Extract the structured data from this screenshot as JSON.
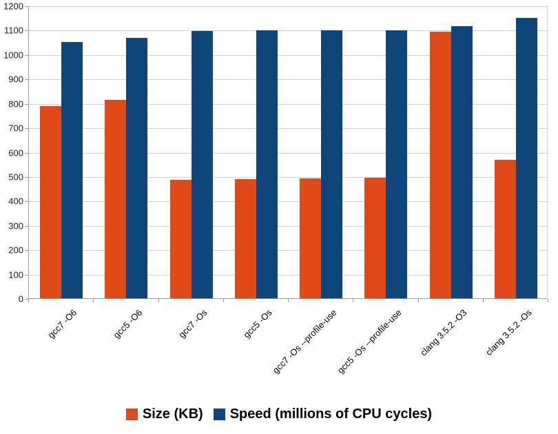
{
  "chart_data": {
    "type": "bar",
    "title": "",
    "xlabel": "",
    "ylabel": "",
    "ylim": [
      0,
      1200
    ],
    "ytick_step": 100,
    "ytick_labels": [
      "0",
      "100",
      "200",
      "300",
      "400",
      "500",
      "600",
      "700",
      "800",
      "900",
      "1000",
      "1100",
      "1200"
    ],
    "grid": true,
    "legend_position": "bottom",
    "categories": [
      "gcc7 -O6",
      "gcc5 -O6",
      "gcc7 -Os",
      "gcc5 -Os",
      "gcc7 -Os --profile-use",
      "gcc5 -Os --profile-use",
      "clang 3.5.2 -O3",
      "clang 3.5.2 -Os"
    ],
    "series": [
      {
        "name": "Size (KB)",
        "color": "#E04A18",
        "values": [
          790,
          816,
          488,
          492,
          494,
          497,
          1095,
          570
        ]
      },
      {
        "name": "Speed (millions of CPU cycles)",
        "color": "#0E467C",
        "values": [
          1053,
          1070,
          1097,
          1100,
          1100,
          1102,
          1117,
          1152
        ]
      }
    ]
  },
  "colors": {
    "background": "#ffffff",
    "gridline": "#d3d3d3",
    "axis": "#9b9b9b",
    "text": "#000000"
  }
}
